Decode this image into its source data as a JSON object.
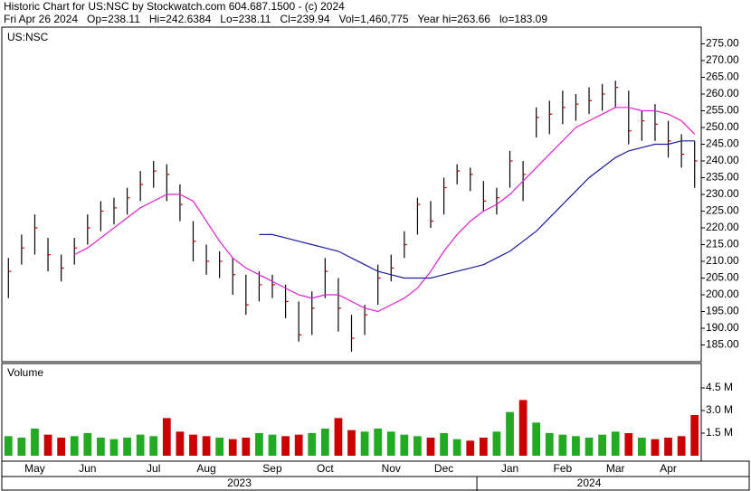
{
  "header": {
    "title": "Historic Chart for US:NSC by Stockwatch.com 604.687.1500 - (c) 2024",
    "subtitle": "Fri Apr 26 2024   Op=238.11   Hi=242.6384   Lo=238.11   Cl=239.94   Vol=1,460,775   Year hi=263.66   lo=183.09"
  },
  "chart_data": [
    {
      "type": "ohlc",
      "title": "US:NSC",
      "categories": [
        null,
        null,
        "May",
        null,
        null,
        null,
        "Jun",
        null,
        null,
        null,
        null,
        "Jul",
        null,
        null,
        null,
        "Aug",
        null,
        null,
        null,
        null,
        "Sep",
        null,
        null,
        null,
        "Oct",
        null,
        null,
        null,
        null,
        "Nov",
        null,
        null,
        null,
        "Dec",
        null,
        null,
        null,
        null,
        "Jan",
        null,
        null,
        null,
        "Feb",
        null,
        null,
        null,
        "Mar",
        null,
        null,
        null,
        "Apr",
        null,
        null
      ],
      "year_labels": [
        "2023",
        "2024"
      ],
      "high": [
        211,
        218,
        224,
        217,
        212,
        217,
        224,
        228,
        229,
        232,
        237,
        240,
        239,
        233,
        222,
        215,
        213,
        211,
        206,
        207,
        206,
        203,
        198,
        201,
        211,
        205,
        194,
        197,
        209,
        212,
        219,
        229,
        228,
        235,
        239,
        238,
        234,
        232,
        243,
        240,
        256,
        258,
        261,
        260,
        262,
        263,
        264,
        261,
        255,
        257,
        252,
        248,
        246
      ],
      "low": [
        199,
        209,
        212,
        207,
        204,
        209,
        215,
        219,
        221,
        224,
        228,
        232,
        228,
        222,
        210,
        206,
        205,
        200,
        194,
        198,
        199,
        193,
        186,
        188,
        199,
        189,
        183,
        188,
        197,
        204,
        211,
        218,
        220,
        224,
        233,
        231,
        225,
        224,
        232,
        228,
        247,
        248,
        251,
        252,
        254,
        255,
        256,
        245,
        246,
        246,
        241,
        238,
        232
      ],
      "close": [
        207,
        214,
        220,
        212,
        208,
        214,
        220,
        225,
        226,
        229,
        233,
        237,
        236,
        227,
        216,
        210,
        210,
        206,
        197,
        203,
        203,
        198,
        188,
        196,
        207,
        196,
        187,
        194,
        205,
        208,
        215,
        227,
        222,
        232,
        237,
        236,
        228,
        229,
        240,
        236,
        253,
        254,
        256,
        257,
        258,
        260,
        262,
        249,
        252,
        251,
        246,
        242,
        240
      ],
      "bar_color": "#000000",
      "close_color": "#cc0000",
      "moving_averages": [
        {
          "color": "#e020d0",
          "values": [
            null,
            null,
            null,
            null,
            null,
            212,
            214,
            217,
            220,
            223,
            226,
            228,
            230,
            230,
            228,
            222,
            216,
            211,
            208,
            206,
            204,
            202,
            200,
            199,
            200,
            200,
            198,
            196,
            195,
            197,
            199,
            202,
            207,
            213,
            218,
            222,
            225,
            227,
            230,
            234,
            238,
            242,
            246,
            250,
            252,
            254,
            256,
            256,
            255,
            255,
            254,
            252,
            248
          ]
        },
        {
          "color": "#1a1aa0",
          "values": [
            null,
            null,
            null,
            null,
            null,
            null,
            null,
            null,
            null,
            null,
            null,
            null,
            null,
            null,
            null,
            null,
            null,
            null,
            null,
            218,
            218,
            217,
            216,
            215,
            214,
            213,
            211,
            209,
            207,
            206,
            205,
            205,
            205,
            206,
            207,
            208,
            209,
            211,
            213,
            216,
            219,
            223,
            227,
            231,
            235,
            238,
            241,
            243,
            244,
            245,
            245,
            246,
            246
          ]
        }
      ],
      "ylim": [
        180,
        280
      ],
      "yticks": [
        {
          "value": 185,
          "label": "185.00"
        },
        {
          "value": 190,
          "label": "190.00"
        },
        {
          "value": 195,
          "label": "195.00"
        },
        {
          "value": 200,
          "label": "200.00"
        },
        {
          "value": 205,
          "label": "205.00"
        },
        {
          "value": 210,
          "label": "210.00"
        },
        {
          "value": 215,
          "label": "215.00"
        },
        {
          "value": 220,
          "label": "220.00"
        },
        {
          "value": 225,
          "label": "225.00"
        },
        {
          "value": 230,
          "label": "230.00"
        },
        {
          "value": 235,
          "label": "235.00"
        },
        {
          "value": 240,
          "label": "240.00"
        },
        {
          "value": 245,
          "label": "245.00"
        },
        {
          "value": 250,
          "label": "250.00"
        },
        {
          "value": 255,
          "label": "255.00"
        },
        {
          "value": 260,
          "label": "260.00"
        },
        {
          "value": 265,
          "label": "265.00"
        },
        {
          "value": 270,
          "label": "270.00"
        },
        {
          "value": 275,
          "label": "275.00"
        }
      ]
    },
    {
      "type": "bar",
      "title": "Volume",
      "values": [
        1.3,
        1.2,
        1.8,
        1.4,
        1.2,
        1.3,
        1.5,
        1.2,
        1.1,
        1.2,
        1.4,
        1.3,
        2.5,
        1.6,
        1.4,
        1.3,
        1.2,
        1.1,
        1.2,
        1.5,
        1.4,
        1.3,
        1.4,
        1.5,
        1.8,
        2.5,
        1.7,
        1.6,
        1.8,
        1.6,
        1.4,
        1.3,
        1.2,
        1.5,
        1.1,
        1.0,
        1.2,
        1.6,
        2.9,
        3.7,
        2.2,
        1.5,
        1.4,
        1.3,
        1.2,
        1.4,
        1.6,
        1.5,
        1.2,
        1.1,
        1.2,
        1.3,
        2.7
      ],
      "up_color": "#22aa22",
      "down_color": "#cc0000",
      "ylim": [
        0,
        6
      ],
      "yticks": [
        {
          "value": 1.5,
          "label": "1.5 M"
        },
        {
          "value": 3.0,
          "label": "3.0 M"
        },
        {
          "value": 4.5,
          "label": "4.5 M"
        }
      ]
    }
  ]
}
